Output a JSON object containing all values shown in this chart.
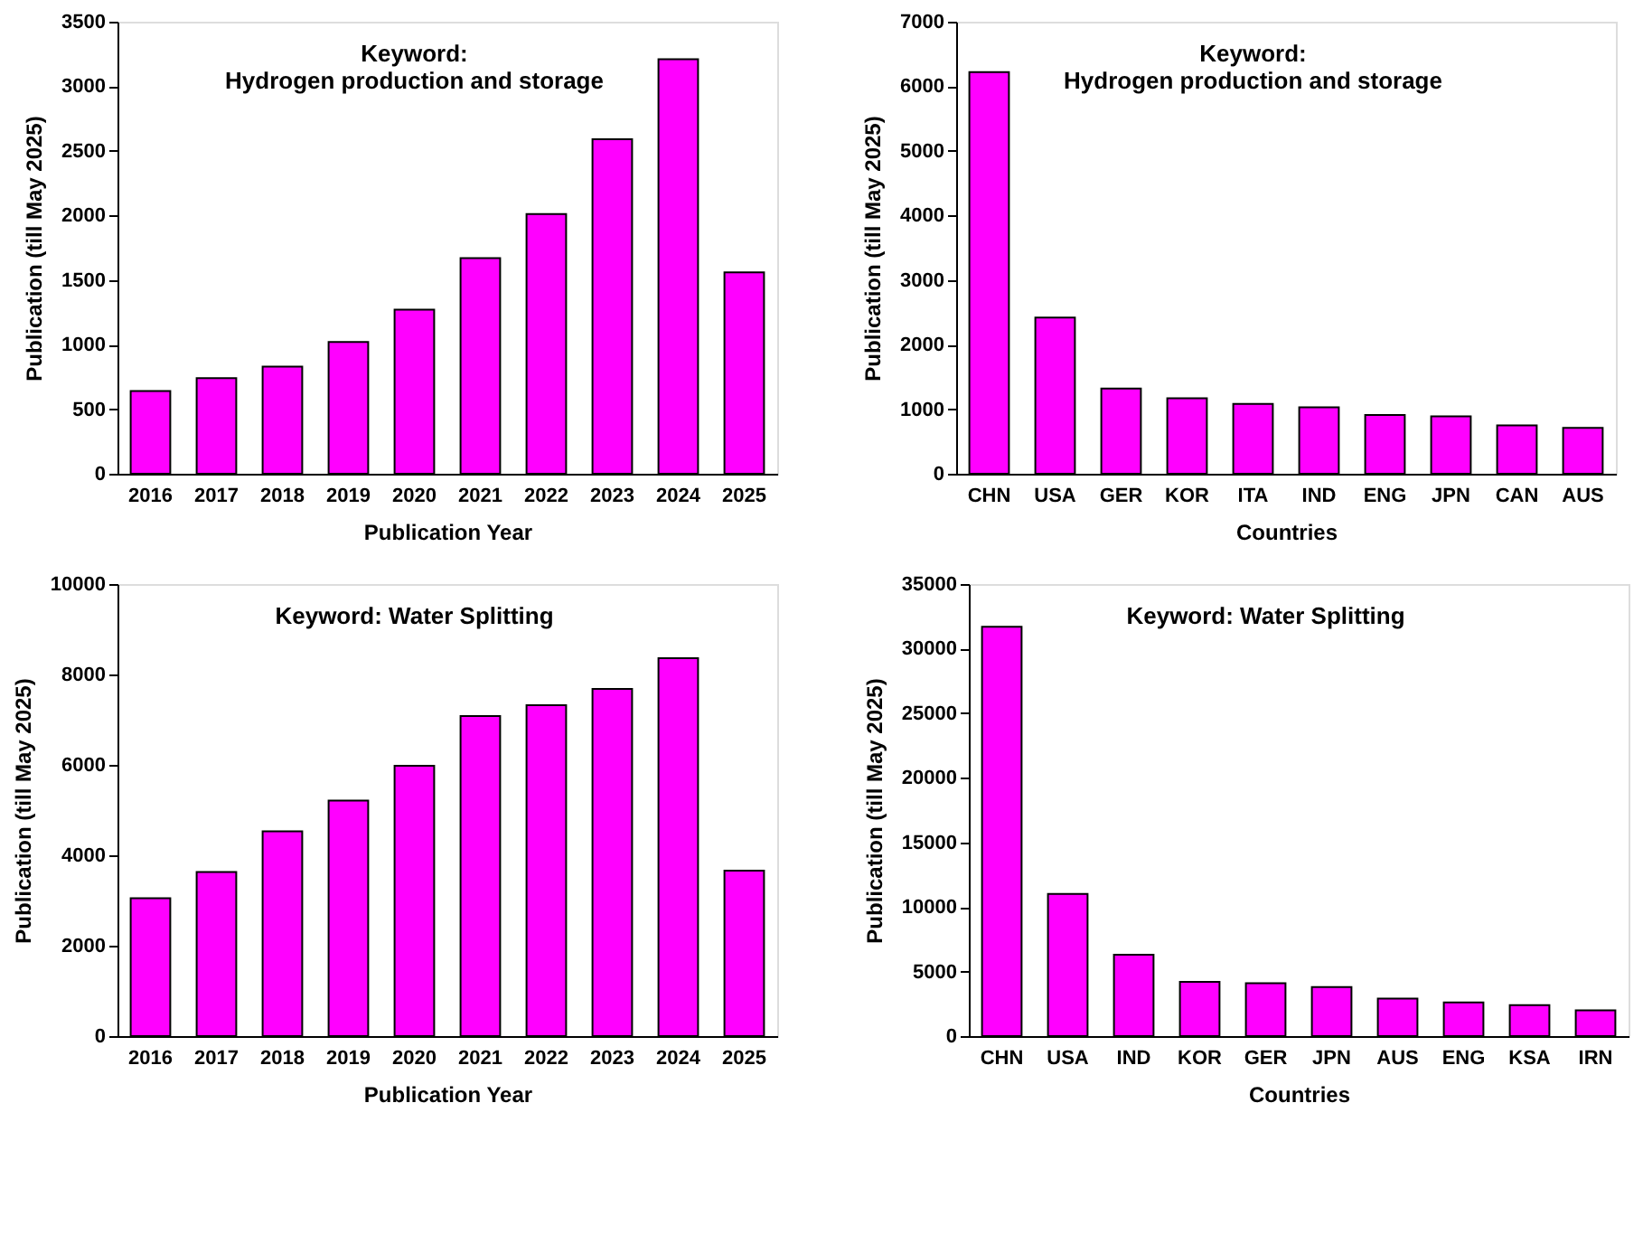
{
  "chart_data": [
    {
      "type": "bar",
      "title": "Keyword:\nHydrogen production and storage",
      "xlabel": "Publication Year",
      "ylabel": "Publication (till May 2025)",
      "categories": [
        "2016",
        "2017",
        "2018",
        "2019",
        "2020",
        "2021",
        "2022",
        "2023",
        "2024",
        "2025"
      ],
      "values": [
        640,
        740,
        830,
        1020,
        1270,
        1670,
        2010,
        2590,
        3210,
        1560
      ],
      "color": "#ff00ff",
      "ylim": [
        0,
        3500
      ],
      "yticks": [
        0,
        500,
        1000,
        1500,
        2000,
        2500,
        3000,
        3500
      ]
    },
    {
      "type": "bar",
      "title": "Keyword:\nHydrogen production and storage",
      "xlabel": "Countries",
      "ylabel": "Publication (till May 2025)",
      "categories": [
        "CHN",
        "USA",
        "GER",
        "KOR",
        "ITA",
        "IND",
        "ENG",
        "JPN",
        "CAN",
        "AUS"
      ],
      "values": [
        6220,
        2420,
        1320,
        1170,
        1080,
        1030,
        910,
        890,
        750,
        710
      ],
      "color": "#ff00ff",
      "ylim": [
        0,
        7000
      ],
      "yticks": [
        0,
        1000,
        2000,
        3000,
        4000,
        5000,
        6000,
        7000
      ]
    },
    {
      "type": "bar",
      "title": "Keyword: Water Splitting",
      "xlabel": "Publication Year",
      "ylabel": "Publication (till May 2025)",
      "categories": [
        "2016",
        "2017",
        "2018",
        "2019",
        "2020",
        "2021",
        "2022",
        "2023",
        "2024",
        "2025"
      ],
      "values": [
        3050,
        3630,
        4530,
        5210,
        5980,
        7080,
        7320,
        7680,
        8360,
        3660
      ],
      "color": "#ff00ff",
      "ylim": [
        0,
        10000
      ],
      "yticks": [
        0,
        2000,
        4000,
        6000,
        8000,
        10000
      ]
    },
    {
      "type": "bar",
      "title": "Keyword: Water Splitting",
      "xlabel": "Countries",
      "ylabel": "Publication (till May 2025)",
      "categories": [
        "CHN",
        "USA",
        "IND",
        "KOR",
        "GER",
        "JPN",
        "AUS",
        "ENG",
        "KSA",
        "IRN"
      ],
      "values": [
        31700,
        11000,
        6300,
        4200,
        4100,
        3800,
        2900,
        2600,
        2400,
        2000
      ],
      "color": "#ff00ff",
      "ylim": [
        0,
        35000
      ],
      "yticks": [
        0,
        5000,
        10000,
        15000,
        20000,
        25000,
        30000,
        35000
      ]
    }
  ]
}
